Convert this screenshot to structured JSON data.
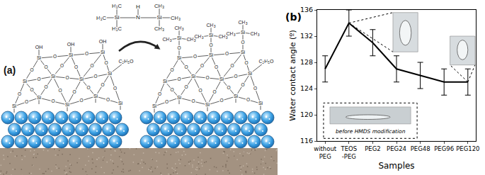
{
  "chart_data": {
    "type": "line",
    "categories": [
      "without PEG",
      "TEOS -PEG",
      "PEG2",
      "PEG24",
      "PEG48",
      "PEG96",
      "PEG120"
    ],
    "values": [
      127,
      134,
      131,
      127,
      126,
      125,
      125
    ],
    "error": [
      2,
      2,
      2,
      2,
      2,
      2,
      2
    ],
    "color": "#000000",
    "x_label": "Samples",
    "y_label": "Water contact angle (º)",
    "ylim": [
      116,
      136
    ],
    "yticks": [
      116,
      120,
      124,
      128,
      132,
      136
    ],
    "grid": false,
    "annotations": [
      "(b)",
      "before HMDS modification"
    ]
  },
  "diagram": {
    "label": "(a)",
    "reagent": {
      "silicon": "Si",
      "nitrogen": "N",
      "hydrogen": "H",
      "methyl": "CH3",
      "methyl_left": "H3C"
    },
    "before": {
      "silicon": "Si",
      "oxygen": "O",
      "hydroxyl": "OH",
      "ethoxy": "C2H5O"
    },
    "after": {
      "silicon": "Si",
      "oxygen": "O",
      "methyl": "CH3",
      "ethoxy": "C2H5O"
    }
  }
}
